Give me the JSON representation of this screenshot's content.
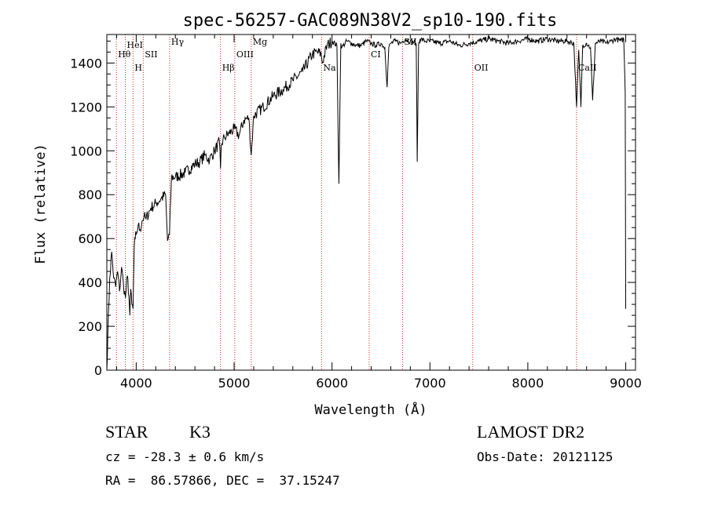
{
  "chart_data": {
    "type": "line",
    "title": "spec-56257-GAC089N38V2_sp10-190.fits",
    "xlabel": "Wavelength (Å)",
    "ylabel": "Flux (relative)",
    "xlim": [
      3700,
      9100
    ],
    "ylim": [
      0,
      1530
    ],
    "x_ticks": [
      4000,
      5000,
      6000,
      7000,
      8000,
      9000
    ],
    "y_ticks": [
      0,
      200,
      400,
      600,
      800,
      1000,
      1200,
      1400
    ],
    "grid": false,
    "line_color": "#000000",
    "marker_color": "#cc2222",
    "series": [
      {
        "x": [
          3700,
          3710,
          3730,
          3750,
          3770,
          3790,
          3810,
          3830,
          3850,
          3870,
          3890,
          3910,
          3925,
          3935,
          3945,
          3955,
          3968,
          3980,
          3990,
          4000,
          4020,
          4040,
          4060,
          4080,
          4100,
          4150,
          4200,
          4250,
          4300,
          4320,
          4340,
          4360,
          4400,
          4500,
          4600,
          4650,
          4700,
          4750,
          4800,
          4850,
          4861,
          4870,
          4900,
          4950,
          5000,
          5050,
          5100,
          5150,
          5175,
          5200,
          5300,
          5400,
          5500,
          5600,
          5700,
          5800,
          5850,
          5890,
          5900,
          5950,
          6000,
          6050,
          6070,
          6090,
          6100,
          6150,
          6200,
          6250,
          6300,
          6350,
          6400,
          6450,
          6500,
          6540,
          6563,
          6580,
          6600,
          6650,
          6700,
          6750,
          6800,
          6860,
          6870,
          6885,
          6900,
          6950,
          7000,
          7100,
          7200,
          7300,
          7400,
          7500,
          7600,
          7700,
          7800,
          7900,
          8000,
          8100,
          8200,
          8300,
          8400,
          8470,
          8498,
          8520,
          8542,
          8560,
          8600,
          8640,
          8662,
          8690,
          8750,
          8800,
          8850,
          8900,
          8950,
          8980,
          8995,
          9000
        ],
        "y": [
          0,
          160,
          420,
          540,
          420,
          380,
          450,
          360,
          470,
          390,
          330,
          430,
          340,
          250,
          370,
          300,
          280,
          560,
          600,
          620,
          660,
          640,
          680,
          700,
          690,
          740,
          760,
          780,
          800,
          590,
          620,
          880,
          880,
          900,
          940,
          950,
          980,
          960,
          1000,
          1040,
          920,
          1030,
          1060,
          1080,
          1100,
          1070,
          1140,
          1150,
          980,
          1160,
          1200,
          1250,
          1280,
          1320,
          1360,
          1440,
          1450,
          1440,
          1400,
          1480,
          1500,
          1480,
          850,
          1490,
          1470,
          1500,
          1490,
          1480,
          1480,
          1500,
          1490,
          1480,
          1490,
          1470,
          1290,
          1470,
          1490,
          1500,
          1490,
          1510,
          1500,
          1490,
          950,
          1490,
          1510,
          1500,
          1500,
          1490,
          1500,
          1480,
          1490,
          1500,
          1510,
          1500,
          1490,
          1500,
          1510,
          1500,
          1510,
          1500,
          1500,
          1490,
          1200,
          1460,
          1200,
          1480,
          1490,
          1470,
          1230,
          1490,
          1500,
          1490,
          1500,
          1510,
          1500,
          1510,
          1260,
          280
        ]
      }
    ],
    "lines": [
      {
        "label": "Hθ",
        "x": 3798
      },
      {
        "label": "HeI",
        "x": 3889
      },
      {
        "label": "H",
        "x": 3968
      },
      {
        "label": "SII",
        "x": 4072
      },
      {
        "label": "Hγ",
        "x": 4341
      },
      {
        "label": "Hβ",
        "x": 4861
      },
      {
        "label": "OIII",
        "x": 5007
      },
      {
        "label": "Mg",
        "x": 5175
      },
      {
        "label": "Na",
        "x": 5893
      },
      {
        "label": "CI",
        "x": 6380
      },
      {
        "label": "SII",
        "x": 6720
      },
      {
        "label": "OII",
        "x": 7437
      },
      {
        "label": "CaII",
        "x": 8498
      }
    ]
  },
  "footer": {
    "object_type": "STAR",
    "subclass": "K3",
    "survey": "LAMOST DR2",
    "velocity": "cz = -28.3 ± 0.6 km/s",
    "obs_date": "Obs-Date: 20121125",
    "coords": "RA =  86.57866, DEC =  37.15247"
  }
}
